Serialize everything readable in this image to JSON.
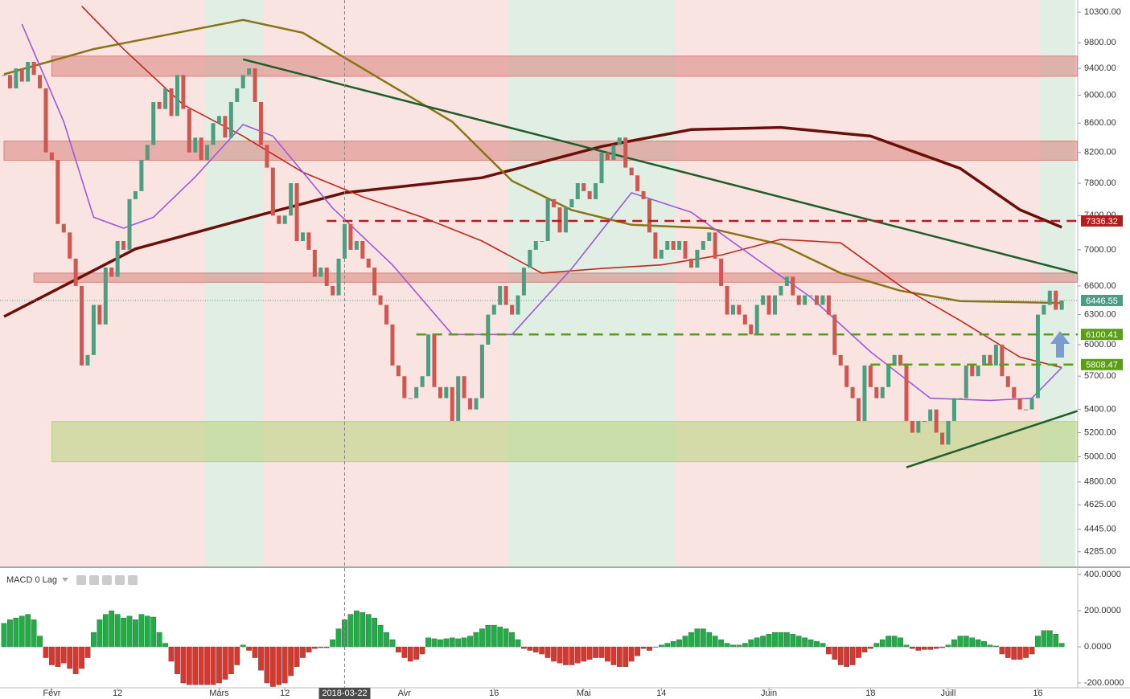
{
  "chart_data": [
    {
      "type": "candlestick",
      "log_scale": true,
      "xlim": [
        -0.67,
        179.67
      ],
      "ylim": [
        4184,
        10505
      ],
      "colors": {
        "up": "#4d9e80",
        "down": "#d0574f"
      },
      "values": [
        9300,
        9100,
        9400,
        9200,
        9500,
        9300,
        9100,
        8200,
        8100,
        7300,
        7200,
        6900,
        6600,
        5800,
        5900,
        6400,
        6200,
        6800,
        6700,
        7100,
        7000,
        7600,
        7700,
        8100,
        8300,
        8900,
        8800,
        9100,
        8700,
        9300,
        8800,
        8200,
        8400,
        8100,
        8300,
        8600,
        8700,
        8400,
        8900,
        9100,
        9300,
        9400,
        8900,
        8300,
        8000,
        7400,
        7300,
        7400,
        7800,
        7100,
        7200,
        7000,
        6700,
        6800,
        6600,
        6500,
        6900,
        7300,
        7000,
        7100,
        6900,
        6800,
        6500,
        6400,
        6200,
        5800,
        5700,
        5500,
        5500,
        5600,
        5700,
        6100,
        5600,
        5500,
        5600,
        5300,
        5700,
        5500,
        5400,
        5500,
        6000,
        6300,
        6400,
        6600,
        6400,
        6300,
        6500,
        6800,
        7000,
        7100,
        7100,
        7600,
        7500,
        7200,
        7500,
        7600,
        7800,
        7700,
        7600,
        7800,
        8200,
        8100,
        8300,
        8400,
        8000,
        7900,
        7700,
        7600,
        7200,
        6900,
        7000,
        7100,
        7000,
        7100,
        6900,
        6800,
        7000,
        7100,
        7200,
        6900,
        6600,
        6300,
        6400,
        6300,
        6200,
        6100,
        6400,
        6500,
        6300,
        6500,
        6600,
        6700,
        6500,
        6400,
        6500,
        6500,
        6400,
        6500,
        6300,
        5900,
        5800,
        5600,
        5500,
        5300,
        5800,
        5600,
        5500,
        5600,
        5800,
        5900,
        5800,
        5300,
        5200,
        5300,
        5300,
        5400,
        5200,
        5100,
        5300,
        5500,
        5500,
        5800,
        5700,
        5800,
        5900,
        5800,
        6000,
        5700,
        5600,
        5500,
        5400,
        5400,
        5500,
        6300,
        6400,
        6550,
        6350,
        6446.55
      ],
      "series": [
        {
          "color": "#6b0f0a",
          "x": [
            0,
            22,
            43,
            57,
            80,
            100,
            115,
            130,
            145,
            160,
            170,
            177
          ],
          "values": [
            6280,
            7010,
            7410,
            7680,
            7870,
            8280,
            8510,
            8540,
            8420,
            7990,
            7470,
            7260
          ]
        },
        {
          "color": "#8a7414",
          "x": [
            0,
            15,
            40,
            50,
            60,
            75,
            85,
            95,
            105,
            118,
            130,
            140,
            150,
            160,
            177
          ],
          "values": [
            9310,
            9700,
            10170,
            9960,
            9400,
            8620,
            7830,
            7466,
            7290,
            7250,
            7060,
            6740,
            6550,
            6440,
            6420
          ]
        },
        {
          "color": "#c0281c",
          "x": [
            13,
            20,
            30,
            40,
            50,
            60,
            70,
            80,
            90,
            100,
            110,
            120,
            130,
            140,
            150,
            160,
            170,
            177
          ],
          "values": [
            10400,
            9700,
            8860,
            8420,
            7940,
            7630,
            7380,
            7100,
            6740,
            6790,
            6830,
            6940,
            7120,
            7080,
            6600,
            6240,
            5880,
            5780
          ]
        },
        {
          "color": "#9b59e0",
          "x": [
            3,
            10,
            15,
            20,
            25,
            32,
            40,
            45,
            55,
            65,
            75,
            85,
            95,
            105,
            115,
            125,
            135,
            145,
            155,
            165,
            172,
            177
          ],
          "values": [
            10100,
            8620,
            7380,
            7250,
            7380,
            7880,
            8580,
            8420,
            7490,
            6830,
            6100,
            6100,
            6790,
            7680,
            7440,
            6940,
            6480,
            5930,
            5500,
            5480,
            5500,
            5780
          ]
        }
      ],
      "trendlines": [
        {
          "color": "#1e5e2a",
          "x": [
            40,
            179.6
          ],
          "values": [
            9540,
            6740
          ]
        },
        {
          "color": "#1e5e2a",
          "x": [
            151,
            179.6
          ],
          "values": [
            4915,
            5386
          ]
        }
      ],
      "zones": [
        {
          "color": "#d9827c",
          "x": [
            8,
            179.6
          ],
          "range": [
            9280,
            9590
          ]
        },
        {
          "color": "#d9827c",
          "x": [
            0,
            179.6
          ],
          "range": [
            8096,
            8353
          ]
        },
        {
          "color": "#d9827c",
          "x": [
            5,
            179.6
          ],
          "range": [
            6640,
            6740
          ]
        },
        {
          "color": "#b8d27a",
          "x": [
            8,
            179.6
          ],
          "range": [
            4960,
            5295
          ]
        }
      ],
      "levels": [
        {
          "value": 7336.32,
          "color": "#b71c1c",
          "start": 54
        },
        {
          "value": 6100.41,
          "color": "#5a9e14",
          "start": 69
        },
        {
          "value": 5808.47,
          "color": "#5a9e14",
          "start": 145
        }
      ],
      "last_color": "#4b9e85",
      "yticks": [
        {
          "value": 10300,
          "label": "10300.00"
        },
        {
          "value": 9800,
          "label": "9800.00"
        },
        {
          "value": 9400,
          "label": "9400.00"
        },
        {
          "value": 9000,
          "label": "9000.00"
        },
        {
          "value": 8600,
          "label": "8600.00"
        },
        {
          "value": 8200,
          "label": "8200.00"
        },
        {
          "value": 7800,
          "label": "7800.00"
        },
        {
          "value": 7400,
          "label": "7400.00"
        },
        {
          "value": 7000,
          "label": "7000.00"
        },
        {
          "value": 6600,
          "label": "6600.00"
        },
        {
          "value": 6300,
          "label": "6300.00"
        },
        {
          "value": 6000,
          "label": "6000.00"
        },
        {
          "value": 5700,
          "label": "5700.00"
        },
        {
          "value": 5400,
          "label": "5400.00"
        },
        {
          "value": 5200,
          "label": "5200.00"
        },
        {
          "value": 5000,
          "label": "5000.00"
        },
        {
          "value": 4800,
          "label": "4800.00"
        },
        {
          "value": 4625,
          "label": "4625.00"
        },
        {
          "value": 4445,
          "label": "4445.00"
        },
        {
          "value": 4285,
          "label": "4285.00"
        }
      ]
    },
    {
      "type": "histogram",
      "title": "MACD 0 Lag",
      "xlim": [
        -0.67,
        179.67
      ],
      "ylim": [
        -222,
        436
      ],
      "colors": {
        "up": "#1fae45",
        "down": "#d9362d"
      },
      "crosshair": 57,
      "values": [
        130,
        150,
        160,
        170,
        180,
        150,
        60,
        -60,
        -100,
        -110,
        -90,
        -120,
        -150,
        -120,
        -60,
        80,
        150,
        180,
        200,
        180,
        160,
        170,
        150,
        180,
        170,
        165,
        80,
        20,
        -80,
        -150,
        -200,
        -210,
        -210,
        -210,
        -210,
        -210,
        -200,
        -180,
        -150,
        -100,
        10,
        -20,
        -60,
        -130,
        -200,
        -220,
        -210,
        -200,
        -160,
        -110,
        -60,
        -30,
        -10,
        -5,
        -5,
        40,
        100,
        150,
        180,
        200,
        190,
        180,
        160,
        120,
        80,
        40,
        -30,
        -60,
        -80,
        -70,
        -40,
        50,
        45,
        40,
        45,
        50,
        45,
        50,
        60,
        80,
        100,
        120,
        120,
        110,
        100,
        80,
        40,
        -10,
        -20,
        -30,
        -40,
        -60,
        -80,
        -90,
        -100,
        -100,
        -90,
        -80,
        -70,
        -60,
        -60,
        -80,
        -100,
        -110,
        -110,
        -80,
        -50,
        -10,
        -20,
        0,
        10,
        20,
        30,
        40,
        60,
        80,
        100,
        100,
        80,
        60,
        40,
        20,
        10,
        10,
        20,
        40,
        50,
        60,
        70,
        80,
        80,
        80,
        70,
        60,
        50,
        40,
        30,
        20,
        -40,
        -70,
        -100,
        -110,
        -100,
        -60,
        -30,
        -10,
        20,
        40,
        60,
        60,
        50,
        10,
        -10,
        -20,
        -15,
        -15,
        -10,
        -5,
        10,
        40,
        60,
        60,
        50,
        40,
        30,
        10,
        5,
        -40,
        -60,
        -70,
        -70,
        -60,
        -40,
        60,
        90,
        90,
        70,
        20
      ],
      "yticks": [
        {
          "value": 400,
          "label": "400.0000"
        },
        {
          "value": 200,
          "label": "200.0000"
        },
        {
          "value": 0,
          "label": "0.0000"
        },
        {
          "value": -200,
          "label": "-200.0000"
        }
      ],
      "xticks": [
        {
          "value": 8,
          "label": "Févr"
        },
        {
          "value": 19,
          "label": "12"
        },
        {
          "value": 36,
          "label": "Mars"
        },
        {
          "value": 47,
          "label": "12"
        },
        {
          "value": 57,
          "label": "2018-03-22"
        },
        {
          "value": 67,
          "label": "Avr"
        },
        {
          "value": 82,
          "label": "16"
        },
        {
          "value": 97,
          "label": "Mai"
        },
        {
          "value": 110,
          "label": "14"
        },
        {
          "value": 128,
          "label": "Juin"
        },
        {
          "value": 145,
          "label": "18"
        },
        {
          "value": 158,
          "label": "Juill"
        },
        {
          "value": 173,
          "label": "16"
        }
      ]
    }
  ]
}
